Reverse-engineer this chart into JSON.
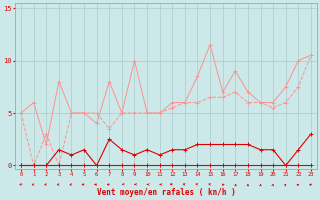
{
  "x": [
    0,
    1,
    2,
    3,
    4,
    5,
    6,
    7,
    8,
    9,
    10,
    11,
    12,
    13,
    14,
    15,
    16,
    17,
    18,
    19,
    20,
    21,
    22,
    23
  ],
  "series1": [
    5.0,
    6.0,
    2.0,
    8.0,
    5.0,
    5.0,
    4.0,
    8.0,
    5.0,
    10.0,
    5.0,
    5.0,
    6.0,
    6.0,
    8.5,
    11.5,
    7.0,
    9.0,
    7.0,
    6.0,
    6.0,
    7.5,
    10.0,
    10.5
  ],
  "series2": [
    5.0,
    0.0,
    3.0,
    0.0,
    5.0,
    5.0,
    5.0,
    3.5,
    5.0,
    5.0,
    5.0,
    5.0,
    5.5,
    6.0,
    6.0,
    6.5,
    6.5,
    7.0,
    6.0,
    6.0,
    5.5,
    6.0,
    7.5,
    10.5
  ],
  "series3": [
    0.0,
    0.0,
    0.0,
    1.5,
    1.0,
    1.5,
    0.0,
    2.5,
    1.5,
    1.0,
    1.5,
    1.0,
    1.5,
    1.5,
    2.0,
    2.0,
    2.0,
    2.0,
    2.0,
    1.5,
    1.5,
    0.0,
    1.5,
    3.0
  ],
  "series4": [
    0.0,
    0.0,
    0.0,
    0.0,
    0.0,
    0.0,
    0.0,
    0.0,
    0.0,
    0.0,
    0.0,
    0.0,
    0.0,
    0.0,
    0.0,
    0.0,
    0.0,
    0.0,
    0.0,
    0.0,
    0.0,
    0.0,
    0.0,
    0.0
  ],
  "color_light": "#FF9090",
  "color_dark": "#DD0000",
  "background": "#cce8e8",
  "grid_color": "#aacccc",
  "xlabel": "Vent moyen/en rafales ( kn/h )",
  "ylim": [
    0,
    15
  ],
  "xlim": [
    -0.5,
    23.5
  ],
  "yticks": [
    0,
    5,
    10,
    15
  ],
  "xticks": [
    0,
    1,
    2,
    3,
    4,
    5,
    6,
    7,
    8,
    9,
    10,
    11,
    12,
    13,
    14,
    15,
    16,
    17,
    18,
    19,
    20,
    21,
    22,
    23
  ],
  "wind_angles": [
    210,
    225,
    225,
    225,
    225,
    240,
    240,
    240,
    250,
    260,
    270,
    280,
    300,
    310,
    315,
    325,
    340,
    355,
    0,
    0,
    5,
    10,
    15,
    20
  ]
}
